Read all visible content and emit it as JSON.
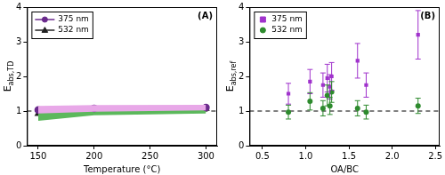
{
  "chart_data": [
    {
      "type": "line",
      "title": "(A)",
      "xlabel": "Temperature (°C)",
      "ylabel": {
        "text": "E",
        "subscript": "abs,TD"
      },
      "x": [
        150,
        200,
        300
      ],
      "xlim": [
        140,
        310
      ],
      "xticks": [
        150,
        200,
        250,
        300
      ],
      "ylim": [
        0,
        4
      ],
      "yticks": [
        0,
        1,
        2,
        3,
        4
      ],
      "grid": false,
      "legend": "upper left",
      "reference_line": {
        "value": 1,
        "line_style": "dashed"
      },
      "series": [
        {
          "name": "375 nm",
          "color": "#6a2a8c",
          "marker": "circle",
          "line_style": "solid",
          "values": [
            1.03,
            1.08,
            1.1
          ],
          "band_lower": [
            0.93,
            0.98,
            1.02
          ],
          "band_upper": [
            1.15,
            1.17,
            1.18
          ],
          "band_color": "#e8a8e8"
        },
        {
          "name": "532 nm",
          "color": "#222222",
          "marker": "triangle",
          "line_style": "solid",
          "values": [
            0.92,
            1.0,
            1.07
          ],
          "band_lower": [
            0.72,
            0.88,
            0.93
          ],
          "band_upper": [
            1.05,
            1.08,
            1.15
          ],
          "band_color": "#5cb85c"
        }
      ]
    },
    {
      "type": "scatter",
      "title": "(B)",
      "xlabel": "OA/BC",
      "ylabel": {
        "text": "E",
        "subscript": "abs,ref"
      },
      "x": [
        0.8,
        1.05,
        1.2,
        1.25,
        1.28,
        1.3,
        1.6,
        1.7,
        2.3
      ],
      "xlim": [
        0.35,
        2.55
      ],
      "xticks": [
        0.5,
        {
          "value": 1,
          "label": "1.0"
        },
        1.5,
        {
          "value": 2,
          "label": "2.0"
        },
        2.5
      ],
      "ylim": [
        0,
        4
      ],
      "yticks": [
        0,
        1,
        2,
        3,
        4
      ],
      "grid": false,
      "legend": "upper left",
      "reference_line": {
        "value": 1,
        "line_style": "dashed"
      },
      "series": [
        {
          "name": "375 nm",
          "color": "#a033cc",
          "marker": "square",
          "values": [
            1.5,
            1.85,
            1.75,
            1.95,
            1.7,
            2.0,
            2.45,
            1.75,
            3.2
          ],
          "errors": [
            0.3,
            0.35,
            0.35,
            0.4,
            0.35,
            0.4,
            0.5,
            0.35,
            0.7
          ]
        },
        {
          "name": "532 nm",
          "color": "#2e8b2e",
          "marker": "circle",
          "values": [
            0.97,
            1.28,
            1.08,
            1.45,
            1.15,
            1.55,
            1.08,
            0.97,
            1.15
          ],
          "errors": [
            0.2,
            0.25,
            0.22,
            0.3,
            0.25,
            0.3,
            0.22,
            0.2,
            0.22
          ]
        }
      ]
    }
  ]
}
